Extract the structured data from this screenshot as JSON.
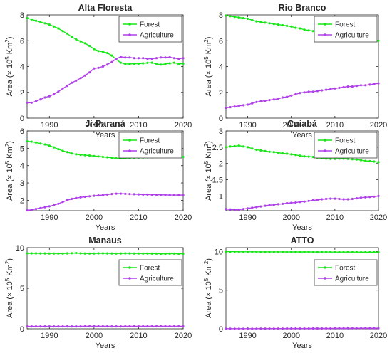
{
  "colors": {
    "forest": "#19e619",
    "agriculture": "#b040e8",
    "axis": "#262626"
  },
  "chart_data": [
    {
      "type": "line",
      "title": "Alta Floresta",
      "xlabel": "Years",
      "ylabel_main": "Area (× 10",
      "ylabel_exp1": "5",
      "ylabel_mid": " Km",
      "ylabel_exp2": "2",
      "ylabel_end": ")",
      "xlim": [
        1985,
        2020
      ],
      "ylim": [
        0,
        8
      ],
      "xticks": [
        "1990",
        "2000",
        "2010",
        "2020"
      ],
      "yticks": [
        "0",
        "2",
        "4",
        "6",
        "8"
      ],
      "legend": "top-right",
      "x": [
        1985,
        1986,
        1987,
        1988,
        1989,
        1990,
        1991,
        1992,
        1993,
        1994,
        1995,
        1996,
        1997,
        1998,
        1999,
        2000,
        2001,
        2002,
        2003,
        2004,
        2005,
        2006,
        2007,
        2008,
        2009,
        2010,
        2011,
        2012,
        2013,
        2014,
        2015,
        2016,
        2017,
        2018,
        2019,
        2020
      ],
      "series": [
        {
          "name": "Forest",
          "values": [
            7.75,
            7.65,
            7.55,
            7.45,
            7.35,
            7.25,
            7.1,
            6.95,
            6.75,
            6.55,
            6.3,
            6.1,
            5.95,
            5.8,
            5.6,
            5.35,
            5.2,
            5.15,
            5.05,
            4.85,
            4.55,
            4.3,
            4.2,
            4.2,
            4.22,
            4.22,
            4.25,
            4.28,
            4.3,
            4.2,
            4.15,
            4.2,
            4.25,
            4.3,
            4.2,
            4.22
          ]
        },
        {
          "name": "Agriculture",
          "values": [
            1.2,
            1.2,
            1.3,
            1.45,
            1.6,
            1.7,
            1.85,
            2.05,
            2.3,
            2.5,
            2.75,
            2.9,
            3.1,
            3.3,
            3.55,
            3.85,
            3.9,
            4.0,
            4.15,
            4.35,
            4.6,
            4.75,
            4.7,
            4.7,
            4.65,
            4.65,
            4.65,
            4.6,
            4.6,
            4.65,
            4.7,
            4.7,
            4.72,
            4.65,
            4.6,
            4.65
          ]
        }
      ]
    },
    {
      "type": "line",
      "title": "Rio Branco",
      "xlabel": "Years",
      "ylabel_main": "Area (× 10",
      "ylabel_exp1": "5",
      "ylabel_mid": " Km",
      "ylabel_exp2": "2",
      "ylabel_end": ")",
      "xlim": [
        1985,
        2020
      ],
      "ylim": [
        0,
        8
      ],
      "xticks": [
        "1990",
        "2000",
        "2010",
        "2020"
      ],
      "yticks": [
        "0",
        "2",
        "4",
        "6",
        "8"
      ],
      "legend": "top-right",
      "x": [
        1985,
        1986,
        1987,
        1988,
        1989,
        1990,
        1991,
        1992,
        1993,
        1994,
        1995,
        1996,
        1997,
        1998,
        1999,
        2000,
        2001,
        2002,
        2003,
        2004,
        2005,
        2006,
        2007,
        2008,
        2009,
        2010,
        2011,
        2012,
        2013,
        2014,
        2015,
        2016,
        2017,
        2018,
        2019,
        2020
      ],
      "series": [
        {
          "name": "Forest",
          "values": [
            7.95,
            7.9,
            7.85,
            7.8,
            7.75,
            7.7,
            7.6,
            7.5,
            7.45,
            7.4,
            7.35,
            7.3,
            7.25,
            7.2,
            7.15,
            7.1,
            7.0,
            6.95,
            6.85,
            6.8,
            6.75,
            6.7,
            6.6,
            6.55,
            6.5,
            6.45,
            6.4,
            6.35,
            6.3,
            6.28,
            6.25,
            6.2,
            6.15,
            6.1,
            6.05,
            6.0
          ]
        },
        {
          "name": "Agriculture",
          "values": [
            0.8,
            0.85,
            0.9,
            0.95,
            1.0,
            1.05,
            1.15,
            1.25,
            1.3,
            1.35,
            1.4,
            1.45,
            1.5,
            1.6,
            1.65,
            1.75,
            1.85,
            1.95,
            2.0,
            2.05,
            2.05,
            2.1,
            2.15,
            2.2,
            2.25,
            2.3,
            2.35,
            2.4,
            2.45,
            2.45,
            2.5,
            2.55,
            2.55,
            2.6,
            2.65,
            2.7
          ]
        }
      ]
    },
    {
      "type": "line",
      "title": "Ji-Paraná",
      "xlabel": "Years",
      "ylabel_main": "Area (× 10",
      "ylabel_exp1": "5",
      "ylabel_mid": " Km",
      "ylabel_exp2": "2",
      "ylabel_end": ")",
      "xlim": [
        1985,
        2020
      ],
      "ylim": [
        1.4,
        6
      ],
      "xticks": [
        "1990",
        "2000",
        "2010",
        "2020"
      ],
      "yticks": [
        "2",
        "3",
        "4",
        "5",
        "6"
      ],
      "legend": "top-right",
      "x": [
        1985,
        1986,
        1987,
        1988,
        1989,
        1990,
        1991,
        1992,
        1993,
        1994,
        1995,
        1996,
        1997,
        1998,
        1999,
        2000,
        2001,
        2002,
        2003,
        2004,
        2005,
        2006,
        2007,
        2008,
        2009,
        2010,
        2011,
        2012,
        2013,
        2014,
        2015,
        2016,
        2017,
        2018,
        2019,
        2020
      ],
      "series": [
        {
          "name": "Forest",
          "values": [
            5.4,
            5.38,
            5.33,
            5.27,
            5.22,
            5.15,
            5.05,
            4.95,
            4.85,
            4.78,
            4.7,
            4.65,
            4.62,
            4.6,
            4.58,
            4.55,
            4.53,
            4.5,
            4.48,
            4.45,
            4.42,
            4.42,
            4.43,
            4.44,
            4.45,
            4.46,
            4.47,
            4.48,
            4.48,
            4.49,
            4.49,
            4.5,
            4.5,
            4.5,
            4.5,
            4.5
          ]
        },
        {
          "name": "Agriculture",
          "values": [
            1.42,
            1.45,
            1.5,
            1.55,
            1.6,
            1.65,
            1.72,
            1.8,
            1.9,
            2.0,
            2.08,
            2.13,
            2.17,
            2.2,
            2.23,
            2.26,
            2.28,
            2.3,
            2.33,
            2.36,
            2.38,
            2.38,
            2.37,
            2.36,
            2.35,
            2.34,
            2.33,
            2.33,
            2.32,
            2.32,
            2.31,
            2.31,
            2.3,
            2.3,
            2.3,
            2.3
          ]
        }
      ]
    },
    {
      "type": "line",
      "title": "Cuiabá",
      "xlabel": "Years",
      "ylabel_main": "Area (× 10",
      "ylabel_exp1": "5",
      "ylabel_mid": " Km",
      "ylabel_exp2": "2",
      "ylabel_end": ")",
      "xlim": [
        1985,
        2020
      ],
      "ylim": [
        0.55,
        3
      ],
      "xticks": [
        "1990",
        "2000",
        "2010",
        "2020"
      ],
      "yticks": [
        "1",
        "1.5",
        "2",
        "2.5",
        "3"
      ],
      "legend": "top-right",
      "x": [
        1985,
        1986,
        1987,
        1988,
        1989,
        1990,
        1991,
        1992,
        1993,
        1994,
        1995,
        1996,
        1997,
        1998,
        1999,
        2000,
        2001,
        2002,
        2003,
        2004,
        2005,
        2006,
        2007,
        2008,
        2009,
        2010,
        2011,
        2012,
        2013,
        2014,
        2015,
        2016,
        2017,
        2018,
        2019,
        2020
      ],
      "series": [
        {
          "name": "Forest",
          "values": [
            2.5,
            2.52,
            2.53,
            2.55,
            2.52,
            2.5,
            2.46,
            2.42,
            2.4,
            2.38,
            2.36,
            2.35,
            2.33,
            2.31,
            2.3,
            2.28,
            2.26,
            2.24,
            2.22,
            2.21,
            2.2,
            2.18,
            2.16,
            2.15,
            2.14,
            2.14,
            2.15,
            2.15,
            2.14,
            2.13,
            2.12,
            2.1,
            2.08,
            2.07,
            2.06,
            2.04
          ]
        },
        {
          "name": "Agriculture",
          "values": [
            0.6,
            0.59,
            0.58,
            0.58,
            0.6,
            0.62,
            0.64,
            0.66,
            0.68,
            0.7,
            0.72,
            0.73,
            0.75,
            0.76,
            0.78,
            0.79,
            0.8,
            0.82,
            0.83,
            0.85,
            0.87,
            0.88,
            0.9,
            0.91,
            0.92,
            0.92,
            0.91,
            0.9,
            0.9,
            0.91,
            0.93,
            0.95,
            0.96,
            0.97,
            0.98,
            1.0
          ]
        }
      ]
    },
    {
      "type": "line",
      "title": "Manaus",
      "xlabel": "Years",
      "ylabel_main": "Area (× 10",
      "ylabel_exp1": "5",
      "ylabel_mid": " Km",
      "ylabel_exp2": "2",
      "ylabel_end": ")",
      "xlim": [
        1985,
        2020
      ],
      "ylim": [
        0,
        10
      ],
      "xticks": [
        "1990",
        "2000",
        "2010",
        "2020"
      ],
      "yticks": [
        "0",
        "5",
        "10"
      ],
      "legend": "right",
      "x": [
        1985,
        1986,
        1987,
        1988,
        1989,
        1990,
        1991,
        1992,
        1993,
        1994,
        1995,
        1996,
        1997,
        1998,
        1999,
        2000,
        2001,
        2002,
        2003,
        2004,
        2005,
        2006,
        2007,
        2008,
        2009,
        2010,
        2011,
        2012,
        2013,
        2014,
        2015,
        2016,
        2017,
        2018,
        2019,
        2020
      ],
      "series": [
        {
          "name": "Forest",
          "values": [
            9.3,
            9.3,
            9.3,
            9.29,
            9.29,
            9.28,
            9.28,
            9.27,
            9.27,
            9.3,
            9.32,
            9.34,
            9.3,
            9.28,
            9.27,
            9.28,
            9.3,
            9.3,
            9.29,
            9.28,
            9.27,
            9.28,
            9.3,
            9.29,
            9.28,
            9.28,
            9.27,
            9.27,
            9.26,
            9.26,
            9.25,
            9.25,
            9.26,
            9.26,
            9.25,
            9.25
          ]
        },
        {
          "name": "Agriculture",
          "values": [
            0.3,
            0.3,
            0.3,
            0.3,
            0.3,
            0.3,
            0.3,
            0.3,
            0.3,
            0.3,
            0.3,
            0.3,
            0.3,
            0.31,
            0.31,
            0.32,
            0.32,
            0.31,
            0.31,
            0.3,
            0.3,
            0.3,
            0.31,
            0.31,
            0.31,
            0.31,
            0.31,
            0.31,
            0.31,
            0.31,
            0.31,
            0.31,
            0.31,
            0.31,
            0.31,
            0.31
          ]
        }
      ]
    },
    {
      "type": "line",
      "title": "ATTO",
      "xlabel": "Years",
      "ylabel_main": "Area (× 10",
      "ylabel_exp1": "5",
      "ylabel_mid": " Km",
      "ylabel_exp2": "2",
      "ylabel_end": ")",
      "xlim": [
        1985,
        2020
      ],
      "ylim": [
        0,
        10.5
      ],
      "xticks": [
        "1990",
        "2000",
        "2010",
        "2020"
      ],
      "yticks": [
        "0",
        "5",
        "10"
      ],
      "legend": "right",
      "x": [
        1985,
        1986,
        1987,
        1988,
        1989,
        1990,
        1991,
        1992,
        1993,
        1994,
        1995,
        1996,
        1997,
        1998,
        1999,
        2000,
        2001,
        2002,
        2003,
        2004,
        2005,
        2006,
        2007,
        2008,
        2009,
        2010,
        2011,
        2012,
        2013,
        2014,
        2015,
        2016,
        2017,
        2018,
        2019,
        2020
      ],
      "series": [
        {
          "name": "Forest",
          "values": [
            9.98,
            9.98,
            9.98,
            9.97,
            9.97,
            9.97,
            9.97,
            9.97,
            9.96,
            9.96,
            9.96,
            9.96,
            9.96,
            9.96,
            9.95,
            9.95,
            9.95,
            9.95,
            9.95,
            9.95,
            9.94,
            9.94,
            9.94,
            9.94,
            9.94,
            9.93,
            9.93,
            9.93,
            9.93,
            9.93,
            9.93,
            9.92,
            9.92,
            9.92,
            9.92,
            9.92
          ]
        },
        {
          "name": "Agriculture",
          "values": [
            0.02,
            0.02,
            0.02,
            0.02,
            0.02,
            0.02,
            0.02,
            0.02,
            0.03,
            0.03,
            0.03,
            0.03,
            0.03,
            0.03,
            0.04,
            0.04,
            0.04,
            0.04,
            0.04,
            0.04,
            0.05,
            0.05,
            0.05,
            0.05,
            0.05,
            0.06,
            0.06,
            0.06,
            0.06,
            0.06,
            0.06,
            0.07,
            0.07,
            0.07,
            0.07,
            0.07
          ]
        }
      ]
    }
  ]
}
